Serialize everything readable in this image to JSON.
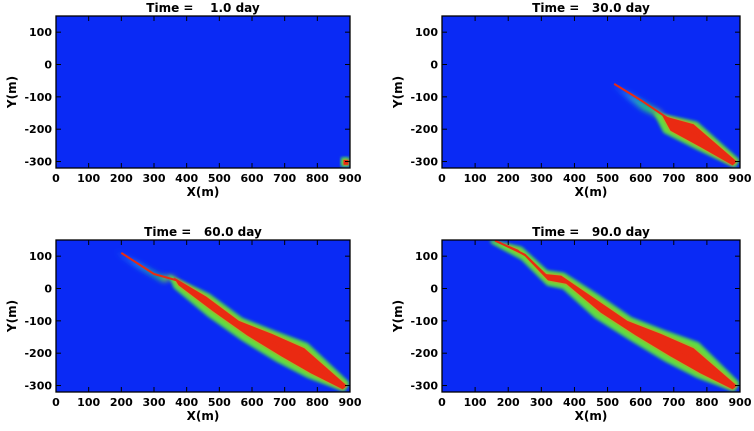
{
  "colors": {
    "background_field": "#0a2af5",
    "colormap": [
      "#0a2af5",
      "#1e5af0",
      "#2aa8e0",
      "#22d06a",
      "#9ae81c",
      "#e8c81a",
      "#f07a18",
      "#ea2a12"
    ]
  },
  "chart_data": [
    {
      "type": "heatmap",
      "title": "Time =    1.0 day",
      "xlabel": "X(m)",
      "ylabel": "Y(m)",
      "xlim": [
        0,
        900
      ],
      "ylim": [
        -320,
        150
      ],
      "xticks": [
        0,
        100,
        200,
        300,
        400,
        500,
        600,
        700,
        800,
        900
      ],
      "yticks": [
        -300,
        -200,
        -100,
        0,
        100
      ],
      "plume": {
        "core": [
          [
            880,
            -295
          ],
          [
            895,
            -295
          ],
          [
            895,
            -310
          ],
          [
            880,
            -310
          ]
        ],
        "halo": [
          [
            873,
            -288
          ],
          [
            898,
            -288
          ],
          [
            898,
            -315
          ],
          [
            873,
            -315
          ]
        ],
        "tail": [],
        "centerline": []
      }
    },
    {
      "type": "heatmap",
      "title": "Time =   30.0 day",
      "xlabel": "X(m)",
      "ylabel": "Y(m)",
      "xlim": [
        0,
        900
      ],
      "ylim": [
        -320,
        150
      ],
      "xticks": [
        0,
        100,
        200,
        300,
        400,
        500,
        600,
        700,
        800,
        900
      ],
      "yticks": [
        -300,
        -200,
        -100,
        0,
        100
      ],
      "plume": {
        "core": [
          [
            665,
            -158
          ],
          [
            760,
            -185
          ],
          [
            890,
            -300
          ],
          [
            878,
            -312
          ],
          [
            780,
            -255
          ],
          [
            690,
            -205
          ]
        ],
        "halo": [
          [
            640,
            -148
          ],
          [
            770,
            -178
          ],
          [
            898,
            -295
          ],
          [
            885,
            -318
          ],
          [
            770,
            -262
          ],
          [
            670,
            -210
          ]
        ],
        "tail": [
          [
            510,
            -55
          ],
          [
            575,
            -95
          ],
          [
            660,
            -145
          ],
          [
            675,
            -170
          ],
          [
            605,
            -140
          ],
          [
            520,
            -70
          ]
        ],
        "centerline": [
          [
            520,
            -60
          ],
          [
            600,
            -110
          ],
          [
            680,
            -165
          ],
          [
            760,
            -210
          ],
          [
            885,
            -305
          ]
        ]
      }
    },
    {
      "type": "heatmap",
      "title": "Time =   60.0 day",
      "xlabel": "X(m)",
      "ylabel": "Y(m)",
      "xlim": [
        0,
        900
      ],
      "ylim": [
        -320,
        150
      ],
      "xticks": [
        0,
        100,
        200,
        300,
        400,
        500,
        600,
        700,
        800,
        900
      ],
      "yticks": [
        -300,
        -200,
        -100,
        0,
        100
      ],
      "plume": {
        "core": [
          [
            360,
            35
          ],
          [
            460,
            -25
          ],
          [
            560,
            -100
          ],
          [
            660,
            -140
          ],
          [
            760,
            -185
          ],
          [
            890,
            -300
          ],
          [
            878,
            -312
          ],
          [
            780,
            -262
          ],
          [
            690,
            -210
          ],
          [
            585,
            -145
          ],
          [
            480,
            -70
          ],
          [
            375,
            10
          ]
        ],
        "halo": [
          [
            345,
            42
          ],
          [
            470,
            -18
          ],
          [
            570,
            -92
          ],
          [
            670,
            -132
          ],
          [
            770,
            -170
          ],
          [
            898,
            -292
          ],
          [
            882,
            -318
          ],
          [
            770,
            -275
          ],
          [
            675,
            -225
          ],
          [
            570,
            -160
          ],
          [
            465,
            -85
          ],
          [
            362,
            2
          ]
        ],
        "tail": [
          [
            180,
            120
          ],
          [
            250,
            80
          ],
          [
            320,
            40
          ],
          [
            370,
            38
          ],
          [
            330,
            20
          ],
          [
            260,
            60
          ],
          [
            195,
            100
          ]
        ],
        "centerline": [
          [
            200,
            110
          ],
          [
            300,
            45
          ],
          [
            370,
            25
          ],
          [
            470,
            -50
          ],
          [
            570,
            -120
          ],
          [
            670,
            -170
          ],
          [
            760,
            -215
          ],
          [
            885,
            -305
          ]
        ]
      }
    },
    {
      "type": "heatmap",
      "title": "Time =   90.0 day",
      "xlabel": "X(m)",
      "ylabel": "Y(m)",
      "xlim": [
        0,
        900
      ],
      "ylim": [
        -320,
        150
      ],
      "xticks": [
        0,
        100,
        200,
        300,
        400,
        500,
        600,
        700,
        800,
        900
      ],
      "yticks": [
        -300,
        -200,
        -100,
        0,
        100
      ],
      "plume": {
        "core": [
          [
            160,
            150
          ],
          [
            230,
            120
          ],
          [
            310,
            45
          ],
          [
            360,
            40
          ],
          [
            460,
            -30
          ],
          [
            560,
            -100
          ],
          [
            660,
            -140
          ],
          [
            760,
            -185
          ],
          [
            890,
            -300
          ],
          [
            878,
            -312
          ],
          [
            780,
            -262
          ],
          [
            690,
            -210
          ],
          [
            585,
            -145
          ],
          [
            480,
            -75
          ],
          [
            375,
            15
          ],
          [
            320,
            25
          ],
          [
            250,
            100
          ],
          [
            175,
            145
          ]
        ],
        "halo": [
          [
            145,
            150
          ],
          [
            240,
            128
          ],
          [
            318,
            55
          ],
          [
            368,
            48
          ],
          [
            472,
            -20
          ],
          [
            572,
            -90
          ],
          [
            672,
            -130
          ],
          [
            775,
            -168
          ],
          [
            898,
            -292
          ],
          [
            882,
            -318
          ],
          [
            770,
            -275
          ],
          [
            675,
            -225
          ],
          [
            570,
            -160
          ],
          [
            462,
            -90
          ],
          [
            365,
            0
          ],
          [
            318,
            10
          ],
          [
            240,
            90
          ],
          [
            150,
            140
          ]
        ],
        "tail": [],
        "centerline": [
          [
            160,
            148
          ],
          [
            250,
            105
          ],
          [
            320,
            35
          ],
          [
            370,
            28
          ],
          [
            470,
            -52
          ],
          [
            570,
            -120
          ],
          [
            670,
            -170
          ],
          [
            760,
            -215
          ],
          [
            885,
            -305
          ]
        ]
      }
    }
  ]
}
